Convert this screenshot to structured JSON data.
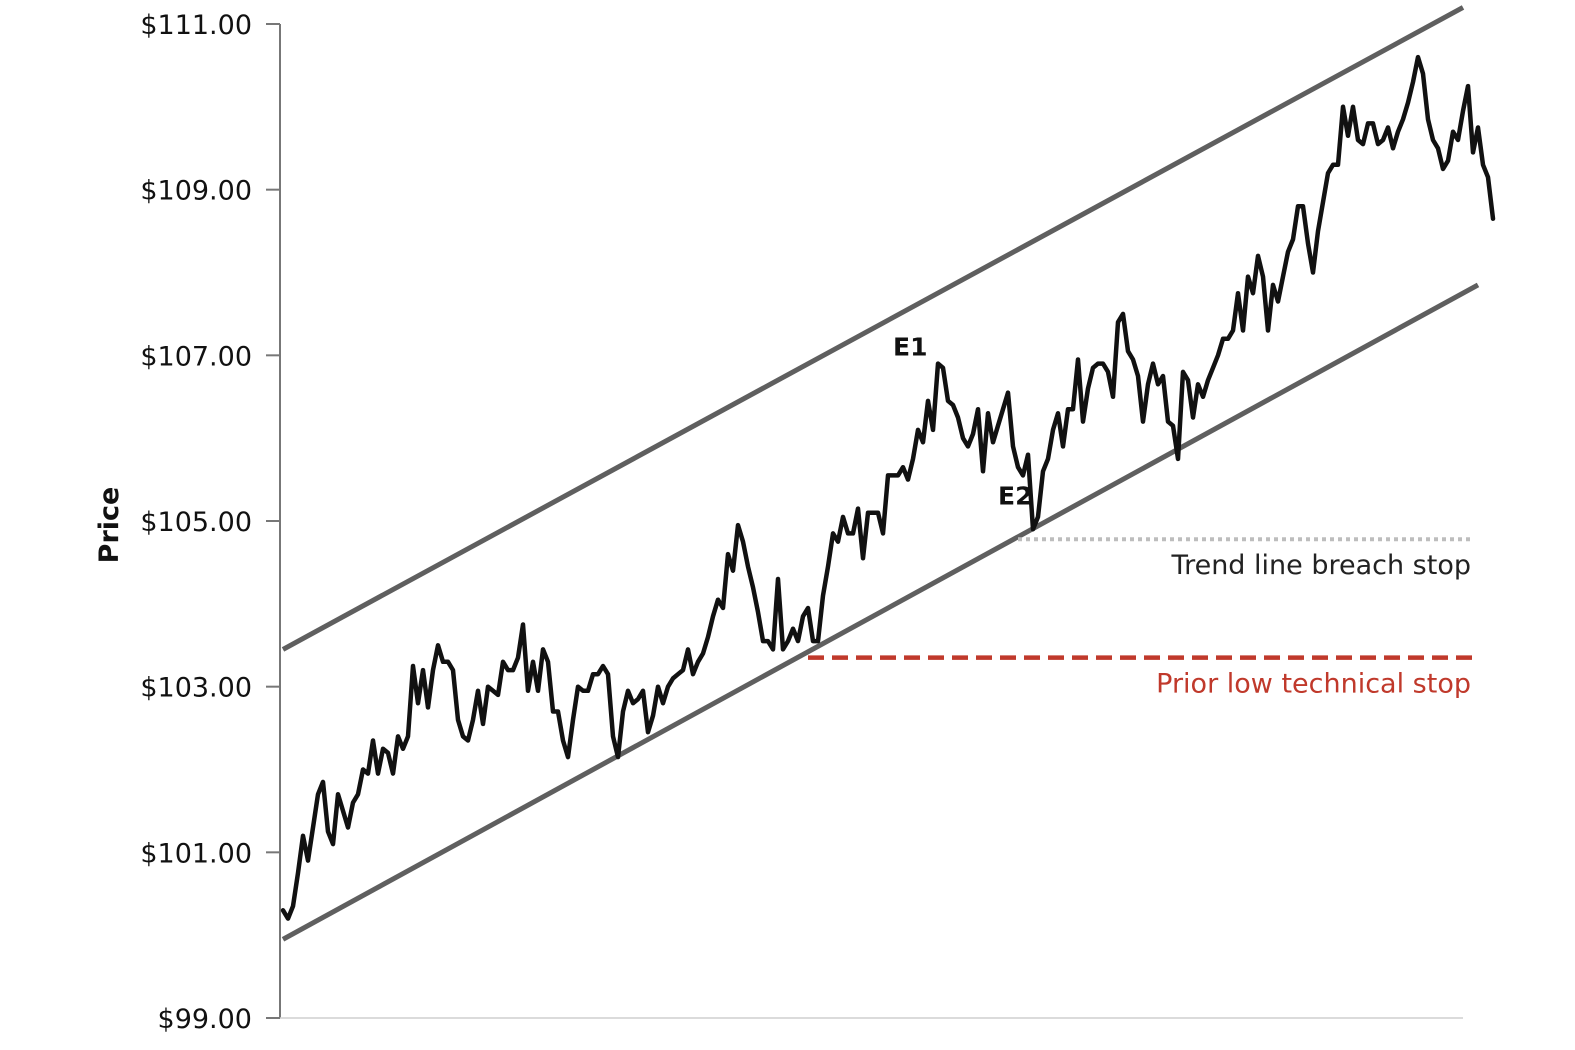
{
  "chart_data": {
    "type": "line",
    "ylabel": "Price",
    "xlabel": "",
    "ylim": [
      99,
      111
    ],
    "yticks": [
      99,
      101,
      103,
      105,
      107,
      109,
      111
    ],
    "ytick_labels": [
      "$99.00",
      "$101.00",
      "$103.00",
      "$105.00",
      "$107.00",
      "$109.00",
      "$111.00"
    ],
    "xlim": [
      0,
      236
    ],
    "grid": false,
    "series": [
      {
        "values": [
          100.3,
          100.2,
          100.35,
          100.75,
          101.2,
          100.9,
          101.3,
          101.7,
          101.85,
          101.25,
          101.1,
          101.7,
          101.5,
          101.3,
          101.6,
          101.7,
          102.0,
          101.95,
          102.35,
          101.95,
          102.25,
          102.2,
          101.95,
          102.4,
          102.25,
          102.4,
          103.25,
          102.8,
          103.2,
          102.75,
          103.2,
          103.5,
          103.3,
          103.3,
          103.2,
          102.6,
          102.4,
          102.35,
          102.6,
          102.95,
          102.55,
          103.0,
          102.95,
          102.9,
          103.3,
          103.2,
          103.2,
          103.35,
          103.75,
          102.95,
          103.3,
          102.95,
          103.45,
          103.3,
          102.7,
          102.7,
          102.35,
          102.15,
          102.6,
          103.0,
          102.95,
          102.95,
          103.15,
          103.15,
          103.25,
          103.15,
          102.4,
          102.15,
          102.7,
          102.95,
          102.8,
          102.85,
          102.95,
          102.45,
          102.65,
          103.0,
          102.8,
          103.0,
          103.1,
          103.15,
          103.2,
          103.45,
          103.15,
          103.3,
          103.4,
          103.6,
          103.85,
          104.05,
          103.95,
          104.6,
          104.4,
          104.95,
          104.75,
          104.45,
          104.2,
          103.9,
          103.55,
          103.55,
          103.45,
          104.3,
          103.45,
          103.55,
          103.7,
          103.55,
          103.85,
          103.95,
          103.55,
          103.55,
          104.1,
          104.45,
          104.85,
          104.75,
          105.05,
          104.85,
          104.85,
          105.15,
          104.55,
          105.1,
          105.1,
          105.1,
          104.85,
          105.55,
          105.55,
          105.55,
          105.65,
          105.5,
          105.75,
          106.1,
          105.95,
          106.45,
          106.1,
          106.9,
          106.85,
          106.45,
          106.4,
          106.25,
          106.0,
          105.9,
          106.05,
          106.35,
          105.6,
          106.3,
          105.95,
          106.15,
          106.35,
          106.55,
          105.9,
          105.65,
          105.55,
          105.8,
          104.9,
          105.05,
          105.6,
          105.75,
          106.1,
          106.3,
          105.9,
          106.35,
          106.35,
          106.95,
          106.2,
          106.6,
          106.85,
          106.9,
          106.9,
          106.8,
          106.5,
          107.4,
          107.5,
          107.05,
          106.95,
          106.75,
          106.2,
          106.65,
          106.9,
          106.65,
          106.75,
          106.2,
          106.15,
          105.75,
          106.8,
          106.7,
          106.25,
          106.65,
          106.5,
          106.7,
          106.85,
          107.0,
          107.2,
          107.2,
          107.3,
          107.75,
          107.3,
          107.95,
          107.75,
          108.2,
          107.95,
          107.3,
          107.85,
          107.65,
          107.95,
          108.25,
          108.4,
          108.8,
          108.8,
          108.35,
          108.0,
          108.5,
          108.85,
          109.2,
          109.3,
          109.3,
          110.0,
          109.65,
          110.0,
          109.6,
          109.55,
          109.8,
          109.8,
          109.55,
          109.6,
          109.75,
          109.5,
          109.7,
          109.85,
          110.05,
          110.3,
          110.6,
          110.4,
          109.85,
          109.6,
          109.5,
          109.25,
          109.35,
          109.7,
          109.6,
          109.95,
          110.25,
          109.45,
          109.75,
          109.3,
          109.15,
          108.65
        ]
      }
    ],
    "channel": {
      "upper": [
        [
          0,
          103.45
        ],
        [
          236,
          111.2
        ]
      ],
      "lower": [
        [
          0,
          99.95
        ],
        [
          239,
          107.85
        ]
      ]
    },
    "stops": [
      {
        "label": "Trend line breach stop",
        "value": 104.78,
        "x_start": 147,
        "x_end": 238,
        "style": "dotted",
        "color": "#bdbdbd",
        "text_color": "#222222"
      },
      {
        "label": "Prior low technical stop",
        "value": 103.35,
        "x_start": 105,
        "x_end": 238,
        "style": "dashed",
        "color": "#c0392b",
        "text_color": "#c0392b"
      }
    ],
    "annotations": [
      {
        "label": "E1",
        "x": 122,
        "y": 107.0
      },
      {
        "label": "E2",
        "x": 143,
        "y": 105.2
      }
    ],
    "colors": {
      "price": "#111111",
      "channel": "#5f5f5f",
      "axis": "#777777"
    }
  }
}
